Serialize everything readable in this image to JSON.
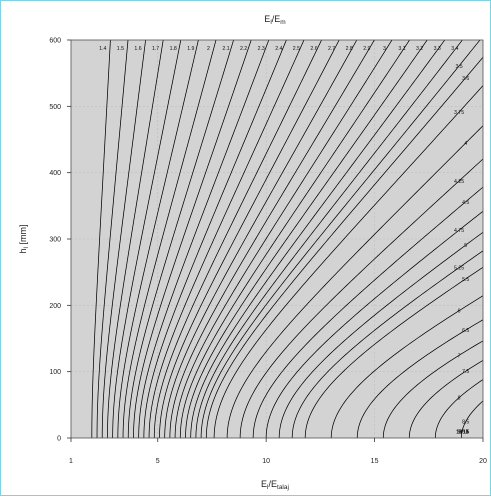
{
  "chart_data": {
    "type": "contour",
    "title": "E_l/E_m",
    "title_main": "E",
    "title_sub1": "l",
    "title_mid": "/E",
    "title_sub2": "m",
    "xlabel_main": "E",
    "xlabel_sub1": "l",
    "xlabel_mid": "/E",
    "xlabel_sub2": "talaj",
    "ylabel": "h_l [mm]",
    "ylabel_main": "h",
    "ylabel_sub": "l",
    "ylabel_rest": " [mm]",
    "xlim": [
      1,
      20
    ],
    "ylim": [
      0,
      600
    ],
    "x_ticks": [
      "1",
      "5",
      "10",
      "15",
      "20"
    ],
    "y_ticks": [
      "0",
      "100",
      "200",
      "300",
      "400",
      "500",
      "600"
    ],
    "x_tick_values": [
      1,
      5,
      10,
      15,
      20
    ],
    "y_tick_values": [
      0,
      100,
      200,
      300,
      400,
      500,
      600
    ],
    "grid": true,
    "background": "#d3d3d3",
    "line_color": "#000000",
    "level_labels": [
      "1.4",
      "1.5",
      "1.6",
      "1.7",
      "1.8",
      "1.9",
      "2",
      "2.1",
      "2.2",
      "2.3",
      "2.4",
      "2.5",
      "2.6",
      "2.7",
      "2.8",
      "2.9",
      "3",
      "3.1",
      "3.2",
      "3.3",
      "3.4",
      "3.5",
      "3.6",
      "3.75",
      "4",
      "4.25",
      "4.5",
      "4.75",
      "5",
      "5.25",
      "5.5",
      "6",
      "6.5",
      "7",
      "7.5",
      "8",
      "8.5",
      "9",
      "9.5",
      "10",
      "11",
      "12",
      "13",
      "14",
      "15",
      "16",
      "17",
      "18"
    ],
    "level_values": [
      1.4,
      1.5,
      1.6,
      1.7,
      1.8,
      1.9,
      2,
      2.1,
      2.2,
      2.3,
      2.4,
      2.5,
      2.6,
      2.7,
      2.8,
      2.9,
      3,
      3.1,
      3.2,
      3.3,
      3.4,
      3.5,
      3.6,
      3.75,
      4,
      4.25,
      4.5,
      4.75,
      5,
      5.25,
      5.5,
      6,
      6.5,
      7,
      7.5,
      8,
      8.5,
      9,
      9.5,
      10,
      11,
      12,
      13,
      14,
      15,
      16,
      17,
      18
    ]
  }
}
